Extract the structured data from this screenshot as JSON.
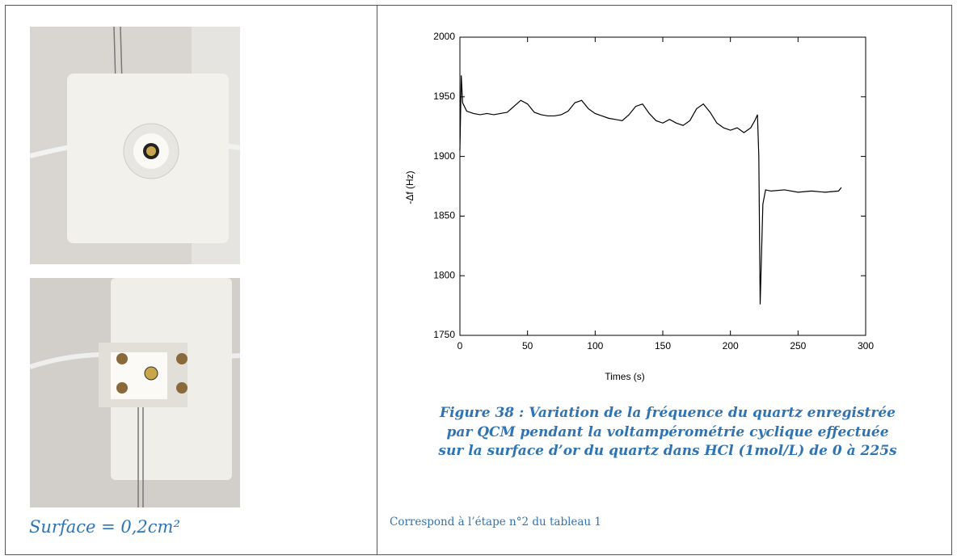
{
  "left": {
    "caption": "Surface = 0,2cm²"
  },
  "right": {
    "caption_lines": [
      "Figure 38 : Variation de la fréquence du quartz enregistrée",
      "par QCM pendant la voltampérométrie cyclique effectuée",
      "sur la surface d’or du quartz dans HCl (1mol/L) de 0 à 225s"
    ],
    "note": "Correspond à l’étape n°2 du tableau 1"
  },
  "chart_data": {
    "type": "line",
    "xlabel": "Times (s)",
    "ylabel": "-Δf (Hz)",
    "color": "#000000",
    "xlim": [
      0,
      300
    ],
    "ylim": [
      1750,
      2000
    ],
    "xticks": [
      0,
      50,
      100,
      150,
      200,
      250,
      300
    ],
    "yticks": [
      1750,
      1800,
      1850,
      1900,
      1950,
      2000
    ],
    "x": [
      0,
      1,
      2,
      5,
      10,
      15,
      20,
      25,
      30,
      35,
      40,
      45,
      50,
      55,
      60,
      65,
      70,
      75,
      80,
      85,
      90,
      95,
      100,
      105,
      110,
      115,
      120,
      125,
      130,
      135,
      140,
      145,
      150,
      155,
      160,
      165,
      170,
      175,
      180,
      185,
      190,
      195,
      200,
      205,
      210,
      215,
      218,
      220,
      221,
      222,
      224,
      226,
      230,
      240,
      250,
      260,
      270,
      280,
      282
    ],
    "values": [
      1905,
      1968,
      1945,
      1938,
      1936,
      1935,
      1936,
      1935,
      1936,
      1937,
      1942,
      1947,
      1944,
      1937,
      1935,
      1934,
      1934,
      1935,
      1938,
      1945,
      1947,
      1940,
      1936,
      1934,
      1932,
      1931,
      1930,
      1935,
      1942,
      1944,
      1936,
      1930,
      1928,
      1931,
      1928,
      1926,
      1930,
      1940,
      1944,
      1937,
      1928,
      1924,
      1922,
      1924,
      1920,
      1924,
      1930,
      1935,
      1900,
      1776,
      1860,
      1872,
      1871,
      1872,
      1870,
      1871,
      1870,
      1871,
      1874
    ]
  }
}
